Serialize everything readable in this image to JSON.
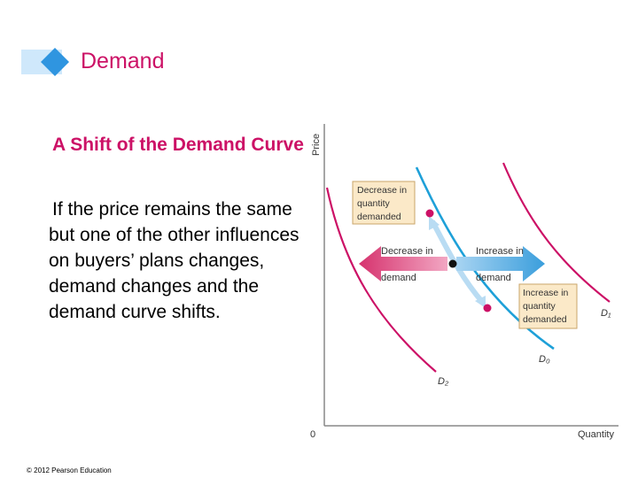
{
  "slide": {
    "title": "Demand",
    "subtitle": "A Shift of the Demand Curve",
    "body": "If the price remains the same but one of the other influences on buyers’ plans changes, demand changes and the demand curve shifts.",
    "copyright": "© 2012 Pearson Education"
  },
  "diagram": {
    "y_axis_label": "Price",
    "x_axis_label": "Quantity",
    "origin_label": "0",
    "curves": [
      {
        "id": "D0",
        "label": "D₀"
      },
      {
        "id": "D1",
        "label": "D₁"
      },
      {
        "id": "D2",
        "label": "D₂"
      }
    ],
    "boxes": {
      "decrease_quantity_demanded": [
        "Decrease in",
        "quantity",
        "demanded"
      ],
      "increase_quantity_demanded": [
        "Increase in",
        "quantity",
        "demanded"
      ]
    },
    "arrows": {
      "decrease_in_demand": [
        "Decrease in",
        "demand"
      ],
      "increase_in_demand": [
        "Increase in",
        "demand"
      ]
    },
    "colors": {
      "title": "#cc1166",
      "d0_curve": "#1ea0d8",
      "shift_curves": "#cc1166",
      "left_arrow": "#d6336e",
      "right_arrow": "#4aa8e0",
      "label_box": "#fbe9c8",
      "header_deco": "#2f95e0"
    }
  }
}
